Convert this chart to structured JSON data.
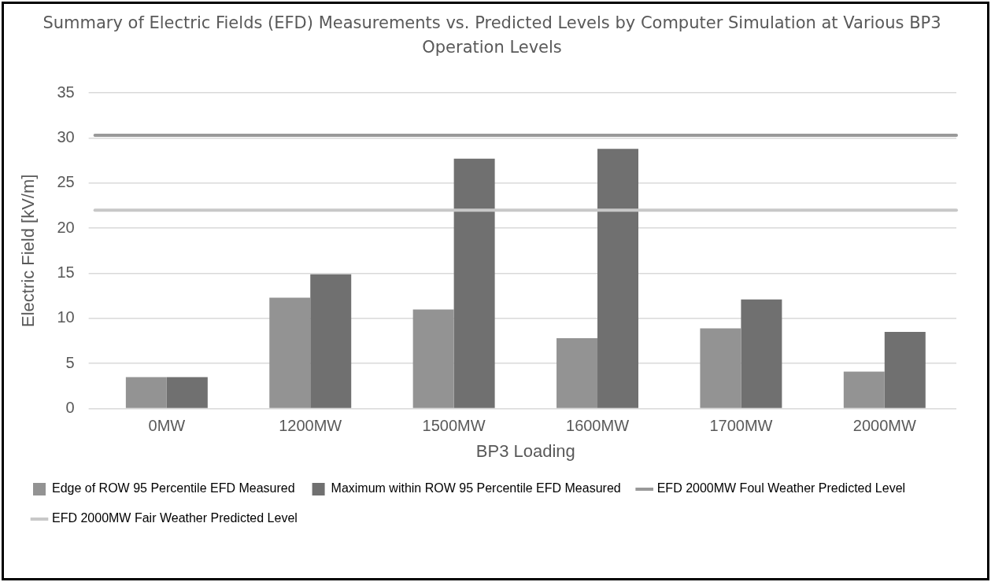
{
  "chart_data": {
    "type": "bar",
    "title": "Summary of Electric Fields (EFD) Measurements vs. Predicted Levels by Computer Simulation at Various BP3 Operation Levels",
    "xlabel": "BP3 Loading",
    "ylabel": "Electric Field [kV/m]",
    "categories": [
      "0MW",
      "1200MW",
      "1500MW",
      "1600MW",
      "1700MW",
      "2000MW"
    ],
    "series": [
      {
        "name": "Edge of ROW 95 Percentile EFD Measured",
        "color": "#939393",
        "values": [
          3.5,
          12.3,
          11.0,
          7.8,
          8.9,
          4.1
        ]
      },
      {
        "name": "Maximum within ROW 95 Percentile EFD Measured",
        "color": "#707070",
        "values": [
          3.5,
          14.9,
          27.7,
          28.8,
          12.1,
          8.5
        ]
      }
    ],
    "ref_lines": [
      {
        "axis": "y",
        "value": 30.3,
        "label": "EFD 2000MW Foul Weather Predicted Level",
        "color": "#999999"
      },
      {
        "axis": "y",
        "value": 22.0,
        "label": "EFD 2000MW Fair Weather Predicted Level",
        "color": "#c8c8c8"
      }
    ],
    "ylim": [
      0,
      35
    ],
    "yticks": [
      0,
      5,
      10,
      15,
      20,
      25,
      30,
      35
    ],
    "grid": "y",
    "legend": "bottom"
  }
}
